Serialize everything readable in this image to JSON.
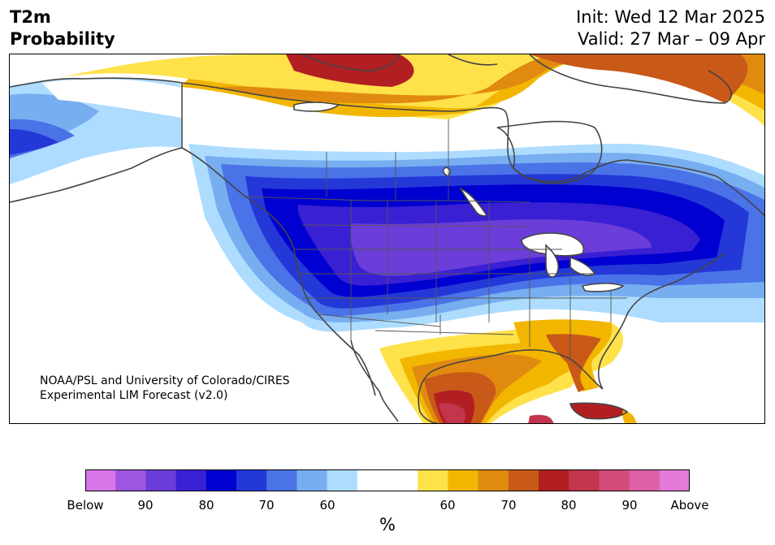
{
  "header": {
    "title_line1": "T2m",
    "title_line2": "Probability",
    "init": "Init: Wed 12 Mar 2025",
    "valid": "Valid: 27 Mar – 09 Apr"
  },
  "credit": {
    "line1": "NOAA/PSL and University of Colorado/CIRES",
    "line2": "Experimental LIM Forecast (v2.0)"
  },
  "colorbar": {
    "colors": [
      "#d775e8",
      "#9c56e0",
      "#6b3ed9",
      "#3a20d3",
      "#0000d0",
      "#2438d8",
      "#4a73e8",
      "#77aef0",
      "#addcff",
      "#ffffff",
      "#ffffff",
      "#ffe14a",
      "#f2b600",
      "#e08a10",
      "#c85918",
      "#b21f22",
      "#c2354d",
      "#d24d7b",
      "#dc61a6",
      "#e67ad9"
    ],
    "labels": [
      "Below",
      "90",
      "80",
      "70",
      "60",
      "60",
      "70",
      "80",
      "90",
      "Above"
    ],
    "units": "%"
  },
  "map": {
    "land": "#ffffff",
    "border": "#444444"
  }
}
